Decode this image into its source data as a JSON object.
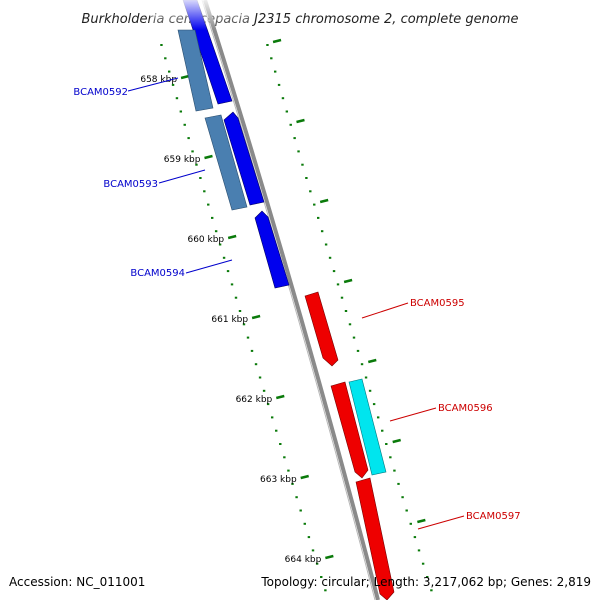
{
  "title": "Burkholderia cenocepacia J2315 chromosome 2, complete genome",
  "footer": {
    "accession": "Accession: NC_011001",
    "summary": "Topology: circular; Length: 3,217,062 bp; Genes: 2,819"
  },
  "colors": {
    "backbone": "#8a8a8a",
    "tick": "#0a7a0a",
    "forward_label": "#0000cc",
    "reverse_label": "#cc0000",
    "gene_blue": "#0000ee",
    "gene_steel": "#4a7fb0",
    "gene_red": "#ee0000",
    "gene_cyan": "#00e5ee"
  },
  "ticks": [
    {
      "kbp": 658,
      "label": "658 kbp"
    },
    {
      "kbp": 659,
      "label": "659 kbp"
    },
    {
      "kbp": 660,
      "label": "660 kbp"
    },
    {
      "kbp": 661,
      "label": "661 kbp"
    },
    {
      "kbp": 662,
      "label": "662 kbp"
    },
    {
      "kbp": 663,
      "label": "663 kbp"
    },
    {
      "kbp": 664,
      "label": "664 kbp"
    }
  ],
  "genes": [
    {
      "name": "BCAM0592",
      "strand": "forward"
    },
    {
      "name": "BCAM0593",
      "strand": "forward"
    },
    {
      "name": "BCAM0594",
      "strand": "forward"
    },
    {
      "name": "BCAM0595",
      "strand": "reverse"
    },
    {
      "name": "BCAM0596",
      "strand": "reverse"
    },
    {
      "name": "BCAM0597",
      "strand": "reverse"
    }
  ]
}
